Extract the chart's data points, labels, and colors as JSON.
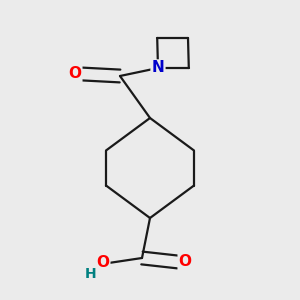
{
  "background_color": "#ebebeb",
  "bond_color": "#1a1a1a",
  "bond_width": 1.6,
  "atom_colors": {
    "O": "#ff0000",
    "N": "#0000cc",
    "H": "#008080",
    "C": "#1a1a1a"
  },
  "font_size_atom": 11,
  "fig_size": [
    3.0,
    3.0
  ],
  "dpi": 100
}
